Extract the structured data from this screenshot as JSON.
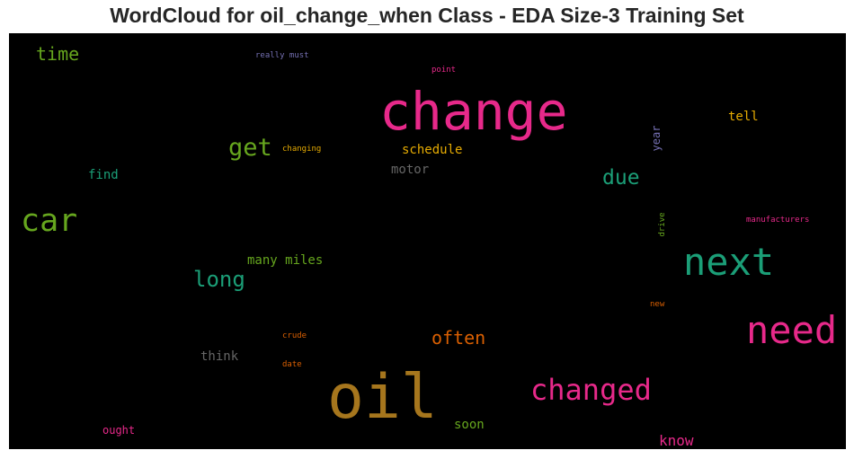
{
  "chart_data": {
    "type": "wordcloud",
    "title": "WordCloud for oil_change_when Class - EDA Size-3 Training Set",
    "background": "#000000",
    "words": [
      {
        "text": "change",
        "color": "#e7298a"
      },
      {
        "text": "oil",
        "color": "#a6761d"
      },
      {
        "text": "next",
        "color": "#1b9e77"
      },
      {
        "text": "need",
        "color": "#e7298a"
      },
      {
        "text": "car",
        "color": "#66a61e"
      },
      {
        "text": "changed",
        "color": "#e7298a"
      },
      {
        "text": "get",
        "color": "#66a61e"
      },
      {
        "text": "long",
        "color": "#1b9e77"
      },
      {
        "text": "due",
        "color": "#1b9e77"
      },
      {
        "text": "time",
        "color": "#66a61e"
      },
      {
        "text": "often",
        "color": "#d95f02"
      },
      {
        "text": "know",
        "color": "#e7298a"
      },
      {
        "text": "schedule",
        "color": "#e6ab02"
      },
      {
        "text": "many miles",
        "color": "#66a61e"
      },
      {
        "text": "motor",
        "color": "#666666"
      },
      {
        "text": "think",
        "color": "#666666"
      },
      {
        "text": "soon",
        "color": "#66a61e"
      },
      {
        "text": "tell",
        "color": "#e6ab02"
      },
      {
        "text": "find",
        "color": "#1b9e77"
      },
      {
        "text": "year",
        "color": "#7570b3"
      },
      {
        "text": "ought",
        "color": "#e7298a"
      },
      {
        "text": "really must",
        "color": "#7570b3"
      },
      {
        "text": "point",
        "color": "#e7298a"
      },
      {
        "text": "changing",
        "color": "#e6ab02"
      },
      {
        "text": "manufacturers",
        "color": "#e7298a"
      },
      {
        "text": "drive",
        "color": "#66a61e"
      },
      {
        "text": "new",
        "color": "#d95f02"
      },
      {
        "text": "crude",
        "color": "#d95f02"
      },
      {
        "text": "date",
        "color": "#d95f02"
      }
    ]
  }
}
